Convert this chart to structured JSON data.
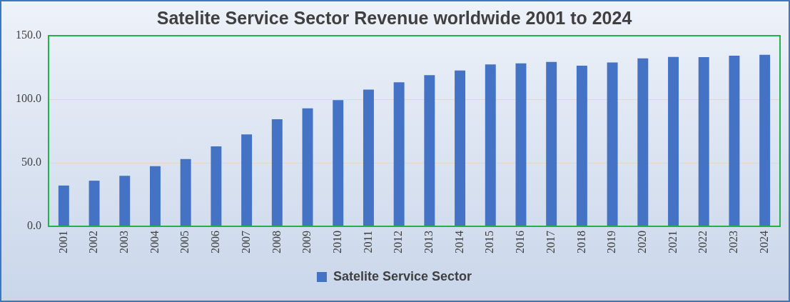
{
  "chart_data": {
    "type": "bar",
    "title": "Satelite Service Sector Revenue worldwide 2001 to 2024",
    "categories": [
      "2001",
      "2002",
      "2003",
      "2004",
      "2005",
      "2006",
      "2007",
      "2008",
      "2009",
      "2010",
      "2011",
      "2012",
      "2013",
      "2014",
      "2015",
      "2016",
      "2017",
      "2018",
      "2019",
      "2020",
      "2021",
      "2022",
      "2023",
      "2024"
    ],
    "series": [
      {
        "name": "Satelite Service Sector",
        "color": "#4472c4",
        "values": [
          32.1,
          35.9,
          39.7,
          47.4,
          52.9,
          62.9,
          72.4,
          84.3,
          92.9,
          99.3,
          107.6,
          113.3,
          119,
          122.6,
          127.4,
          128.3,
          129.3,
          126.4,
          129,
          132.1,
          133.3,
          133.1,
          134.3,
          135
        ]
      }
    ],
    "ylim": [
      0,
      150
    ],
    "yticks": [
      {
        "value": 0,
        "label": "0.0"
      },
      {
        "value": 50,
        "label": "50.0"
      },
      {
        "value": 100,
        "label": "100.0"
      },
      {
        "value": 150,
        "label": "150.0"
      }
    ],
    "grid": "y",
    "legend": "bottom"
  }
}
